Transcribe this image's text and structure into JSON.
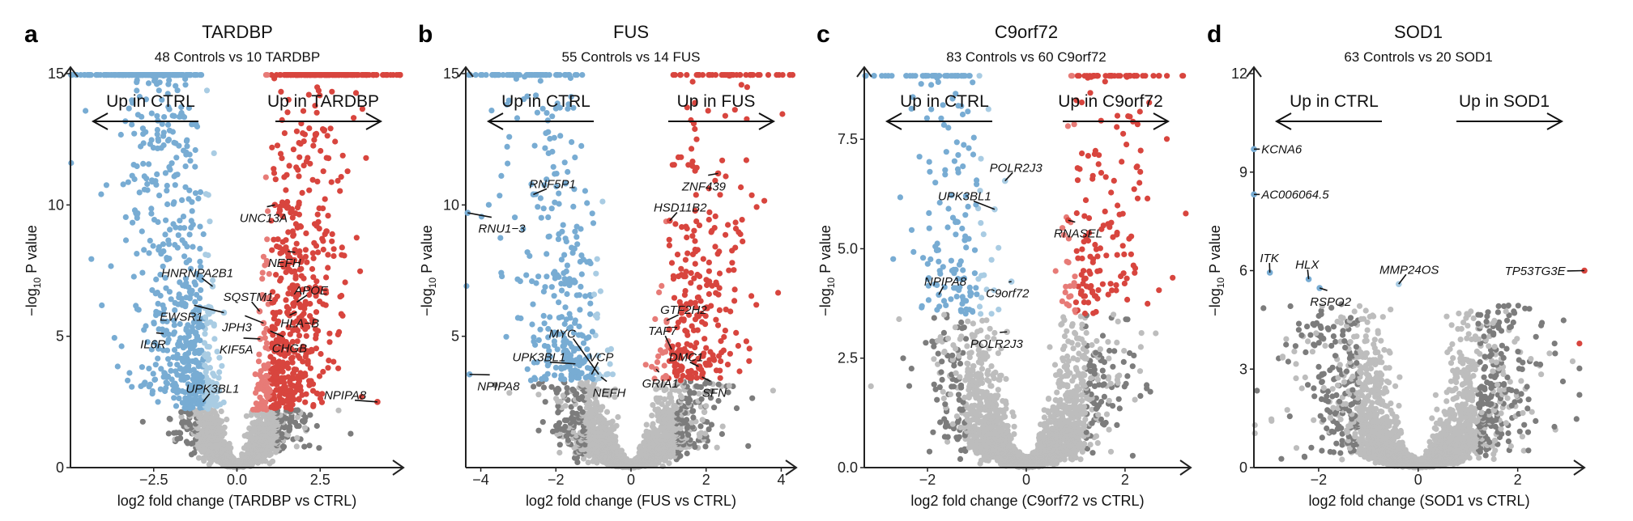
{
  "colors": {
    "ctrl_strong": "#78acd3",
    "ctrl_weak": "#a9cce3",
    "case_strong": "#d8453e",
    "case_weak": "#e77b77",
    "ns_light": "#bdbdbd",
    "ns_dark": "#7c7c7c"
  },
  "chart_data": [
    {
      "type": "scatter",
      "letter": "a",
      "title": "TARDBP",
      "subtitle": "48 Controls vs 10 TARDBP",
      "xlabel": "log2 fold change (TARDBP vs CTRL)",
      "ylabel": "−log10 P value",
      "xlim": [
        -5,
        5
      ],
      "ylim": [
        0,
        15
      ],
      "xticks": [
        {
          "v": -2.5,
          "label": "−2.5"
        },
        {
          "v": 0,
          "label": "0.0"
        },
        {
          "v": 2.5,
          "label": "2.5"
        }
      ],
      "yticks": [
        {
          "v": 0,
          "label": "0"
        },
        {
          "v": 5,
          "label": "5"
        },
        {
          "v": 10,
          "label": "10"
        },
        {
          "v": 15,
          "label": "15"
        }
      ],
      "left_annotation": "Up in CTRL",
      "right_annotation": "Up in TARDBP",
      "labeled_genes": [
        {
          "gene": "UNC13A",
          "x": 1.14,
          "y": 10.0,
          "label_x": 0.8,
          "label_y": 9.5,
          "group": "case_strong"
        },
        {
          "gene": "NEFH",
          "x": 1.75,
          "y": 8.2,
          "label_x": 1.43,
          "label_y": 7.8,
          "group": "case_strong"
        },
        {
          "gene": "HNRNPA2B1",
          "x": -0.73,
          "y": 6.9,
          "label_x": -1.19,
          "label_y": 7.4,
          "group": "ctrl_weak"
        },
        {
          "gene": "APOE",
          "x": 1.8,
          "y": 6.3,
          "label_x": 2.23,
          "label_y": 6.75,
          "group": "case_strong"
        },
        {
          "gene": "SQSTM1",
          "x": 0.68,
          "y": 5.95,
          "label_x": 0.34,
          "label_y": 6.5,
          "group": "case_weak"
        },
        {
          "gene": "EWSR1",
          "x": -0.39,
          "y": 5.9,
          "label_x": -1.67,
          "label_y": 5.75,
          "group": "ctrl_weak"
        },
        {
          "gene": "HLA−B",
          "x": 1.58,
          "y": 5.8,
          "label_x": 1.89,
          "label_y": 5.5,
          "group": "case_strong"
        },
        {
          "gene": "JPH3",
          "x": 0.8,
          "y": 5.5,
          "label_x": 0.0,
          "label_y": 5.35,
          "group": "case_weak"
        },
        {
          "gene": "IL6R",
          "x": -2.2,
          "y": 5.1,
          "label_x": -2.52,
          "label_y": 4.7,
          "group": "ctrl_strong"
        },
        {
          "gene": "KIF5A",
          "x": 0.7,
          "y": 4.9,
          "label_x": -0.02,
          "label_y": 4.5,
          "group": "case_weak"
        },
        {
          "gene": "CHGB",
          "x": 1.0,
          "y": 5.2,
          "label_x": 1.58,
          "label_y": 4.55,
          "group": "case_strong"
        },
        {
          "gene": "UPK3BL1",
          "x": -1.02,
          "y": 2.5,
          "label_x": -0.73,
          "label_y": 3.0,
          "group": "ctrl_strong"
        },
        {
          "gene": "NPIPA8",
          "x": 4.22,
          "y": 2.5,
          "label_x": 3.25,
          "label_y": 2.75,
          "group": "case_strong"
        }
      ]
    },
    {
      "type": "scatter",
      "letter": "b",
      "title": "FUS",
      "subtitle": "55 Controls vs 14 FUS",
      "xlabel": "log2 fold change (FUS vs CTRL)",
      "ylabel": "−log10 P value",
      "xlim": [
        -4.4,
        4.4
      ],
      "ylim": [
        0,
        15
      ],
      "xticks": [
        {
          "v": -4,
          "label": "−4"
        },
        {
          "v": -2,
          "label": "−2"
        },
        {
          "v": 0,
          "label": "0"
        },
        {
          "v": 2,
          "label": "2"
        },
        {
          "v": 4,
          "label": "4"
        }
      ],
      "yticks": [
        {
          "v": 5,
          "label": "5"
        },
        {
          "v": 10,
          "label": "10"
        },
        {
          "v": 15,
          "label": "15"
        }
      ],
      "left_annotation": "Up in CTRL",
      "right_annotation": "Up in FUS",
      "labeled_genes": [
        {
          "gene": "RNF5P1",
          "x": -2.6,
          "y": 10.4,
          "label_x": -2.09,
          "label_y": 10.8,
          "group": "ctrl_strong"
        },
        {
          "gene": "ZNF439",
          "x": 2.32,
          "y": 11.2,
          "label_x": 1.94,
          "label_y": 10.7,
          "group": "case_strong"
        },
        {
          "gene": "HSD11B2",
          "x": 1.03,
          "y": 9.4,
          "label_x": 1.31,
          "label_y": 9.9,
          "group": "case_strong"
        },
        {
          "gene": "RNU1−3",
          "x": -4.35,
          "y": 9.7,
          "label_x": -3.44,
          "label_y": 9.1,
          "group": "ctrl_strong"
        },
        {
          "gene": "GTF2H2",
          "x": 0.95,
          "y": 5.6,
          "label_x": 1.4,
          "label_y": 6.0,
          "group": "case_weak"
        },
        {
          "gene": "TAF7",
          "x": 1.08,
          "y": 4.5,
          "label_x": 0.84,
          "label_y": 5.2,
          "group": "case_strong"
        },
        {
          "gene": "MYC",
          "x": -0.86,
          "y": 3.55,
          "label_x": -1.83,
          "label_y": 5.1,
          "group": "ctrl_weak"
        },
        {
          "gene": "UPK3BL1",
          "x": -1.48,
          "y": 3.95,
          "label_x": -2.45,
          "label_y": 4.2,
          "group": "ctrl_strong"
        },
        {
          "gene": "VCP",
          "x": -1.05,
          "y": 3.55,
          "label_x": -0.8,
          "label_y": 4.2,
          "group": "ctrl_strong"
        },
        {
          "gene": "DMC1",
          "x": 1.8,
          "y": 3.85,
          "label_x": 1.47,
          "label_y": 4.2,
          "group": "case_strong"
        },
        {
          "gene": "NEFH",
          "x": -0.8,
          "y": 3.45,
          "label_x": -0.58,
          "label_y": 2.85,
          "group": "ctrl_weak"
        },
        {
          "gene": "GRIA1",
          "x": 0.67,
          "y": 3.75,
          "label_x": 0.78,
          "label_y": 3.2,
          "group": "case_weak"
        },
        {
          "gene": "SFN",
          "x": 1.89,
          "y": 3.45,
          "label_x": 2.22,
          "label_y": 2.85,
          "group": "case_strong"
        },
        {
          "gene": "NPIPA8",
          "x": -4.3,
          "y": 3.55,
          "label_x": -3.53,
          "label_y": 3.1,
          "group": "ctrl_strong"
        }
      ]
    },
    {
      "type": "scatter",
      "letter": "c",
      "title": "C9orf72",
      "subtitle": "83 Controls vs 60 C9orf72",
      "xlabel": "log2 fold change (C9orf72 vs CTRL)",
      "ylabel": "−log10 P value",
      "xlim": [
        -3.28,
        3.33
      ],
      "ylim": [
        0,
        9.0
      ],
      "xticks": [
        {
          "v": -2,
          "label": "−2"
        },
        {
          "v": 0,
          "label": "0"
        },
        {
          "v": 2,
          "label": "2"
        }
      ],
      "yticks": [
        {
          "v": 0,
          "label": "0.0"
        },
        {
          "v": 2.5,
          "label": "2.5"
        },
        {
          "v": 5,
          "label": "5.0"
        },
        {
          "v": 7.5,
          "label": "7.5"
        }
      ],
      "left_annotation": "Up in CTRL",
      "right_annotation": "Up in C9orf72",
      "labeled_genes": [
        {
          "gene": "POLR2J3",
          "x": -0.43,
          "y": 6.55,
          "label_x": -0.21,
          "label_y": 6.85,
          "group": "ctrl_weak"
        },
        {
          "gene": "UPK3BL1",
          "x": -0.64,
          "y": 5.9,
          "label_x": -1.25,
          "label_y": 6.2,
          "group": "ctrl_weak"
        },
        {
          "gene": "RNASEL",
          "x": 0.85,
          "y": 5.65,
          "label_x": 1.05,
          "label_y": 5.35,
          "group": "case_strong"
        },
        {
          "gene": "NPIPA8",
          "x": -1.77,
          "y": 3.95,
          "label_x": -1.64,
          "label_y": 4.25,
          "group": "ctrl_strong"
        },
        {
          "gene": "C9orf72",
          "x": -0.3,
          "y": 4.25,
          "label_x": -0.38,
          "label_y": 3.98,
          "group": "ctrl_weak"
        },
        {
          "gene": "POLR2J3",
          "x": -0.39,
          "y": 3.1,
          "label_x": -0.6,
          "label_y": 2.83,
          "group": "ns_light"
        }
      ]
    },
    {
      "type": "scatter",
      "letter": "d",
      "title": "SOD1",
      "subtitle": "63 Controls vs 20 SOD1",
      "xlabel": "log2 fold change (SOD1 vs CTRL)",
      "ylabel": "−log10 P value",
      "xlim": [
        -3.3,
        3.34
      ],
      "ylim": [
        0,
        12
      ],
      "xticks": [
        {
          "v": -2,
          "label": "−2"
        },
        {
          "v": 0,
          "label": "0"
        },
        {
          "v": 2,
          "label": "2"
        }
      ],
      "yticks": [
        {
          "v": 0,
          "label": "0"
        },
        {
          "v": 3,
          "label": "3"
        },
        {
          "v": 6,
          "label": "6"
        },
        {
          "v": 9,
          "label": "9"
        },
        {
          "v": 12,
          "label": "12"
        }
      ],
      "left_annotation": "Up in CTRL",
      "right_annotation": "Up in SOD1",
      "labeled_genes": [
        {
          "gene": "KCNA6",
          "x": -3.3,
          "y": 9.7,
          "label_x": -3.15,
          "label_y": 9.7,
          "group": "ctrl_strong",
          "anchor": "start"
        },
        {
          "gene": "AC006064.5",
          "x": -3.3,
          "y": 8.32,
          "label_x": -3.15,
          "label_y": 8.32,
          "group": "ctrl_strong",
          "anchor": "start"
        },
        {
          "gene": "ITK",
          "x": -2.98,
          "y": 5.94,
          "label_x": -2.99,
          "label_y": 6.38,
          "group": "ctrl_strong"
        },
        {
          "gene": "HLX",
          "x": -2.2,
          "y": 5.74,
          "label_x": -2.23,
          "label_y": 6.18,
          "group": "ctrl_strong"
        },
        {
          "gene": "RSPO2",
          "x": -1.98,
          "y": 5.47,
          "label_x": -1.76,
          "label_y": 5.05,
          "group": "ctrl_strong"
        },
        {
          "gene": "MMP24OS",
          "x": -0.39,
          "y": 5.59,
          "label_x": -0.18,
          "label_y": 6.03,
          "group": "ctrl_weak"
        },
        {
          "gene": "TP53TG3E",
          "x": 3.34,
          "y": 6.0,
          "label_x": 2.96,
          "label_y": 5.99,
          "group": "case_strong",
          "anchor": "end"
        }
      ]
    }
  ]
}
